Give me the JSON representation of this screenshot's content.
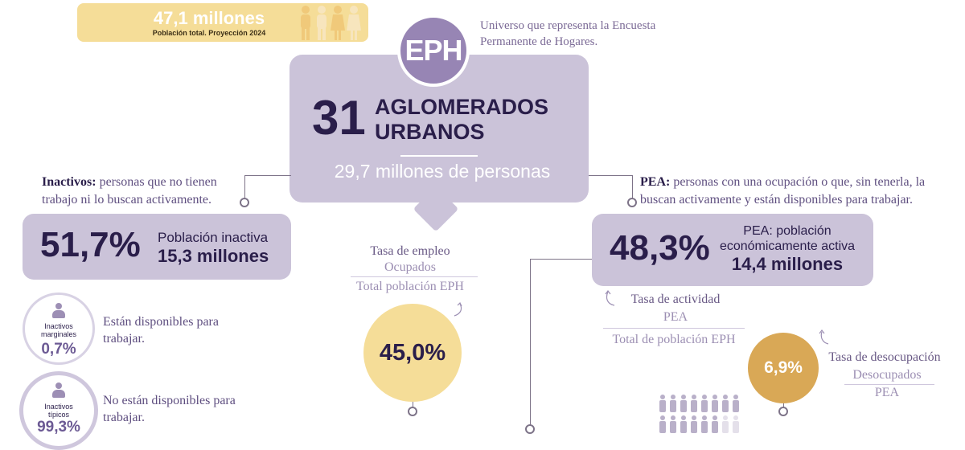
{
  "population": {
    "value": "47,1 millones",
    "caption": "Población total. Proyección 2024"
  },
  "eph": {
    "badge": "EPH",
    "description": "Universo que representa la Encuesta Permanente de Hogares."
  },
  "main": {
    "count": "31",
    "title_line1": "AGLOMERADOS",
    "title_line2": "URBANOS",
    "people": "29,7 millones de personas"
  },
  "inactivos": {
    "term": "Inactivos:",
    "description": " personas que no tienen trabajo ni lo buscan activamente.",
    "percent": "51,7%",
    "label": "Población inactiva",
    "millions": "15,3 millones",
    "marginal": {
      "label": "Inactivos marginales",
      "percent": "0,7%",
      "text": "Están disponibles para trabajar."
    },
    "tipicos": {
      "label": "Inactivos típicos",
      "percent": "99,3%",
      "text": "No están disponibles para trabajar."
    }
  },
  "empleo": {
    "title": "Tasa de empleo",
    "numerator": "Ocupados",
    "denominator": "Total población EPH",
    "value": "45,0%"
  },
  "pea": {
    "term": "PEA:",
    "description": " personas con una ocupación o que, sin tenerla, la buscan activamente y están disponibles para trabajar.",
    "percent": "48,3%",
    "label": "PEA: población económicamente activa",
    "millions": "14,4 millones"
  },
  "actividad": {
    "title": "Tasa de actividad",
    "numerator": "PEA",
    "denominator": "Total de población EPH"
  },
  "desocupacion": {
    "title": "Tasa de desocupación",
    "numerator": "Desocupados",
    "denominator": "PEA",
    "value": "6,9%"
  },
  "colors": {
    "lavender": "#cbc3d9",
    "purple": "#9785b4",
    "yellow": "#f5dd98",
    "gold": "#d9a856",
    "dark": "#2a1e4a"
  }
}
